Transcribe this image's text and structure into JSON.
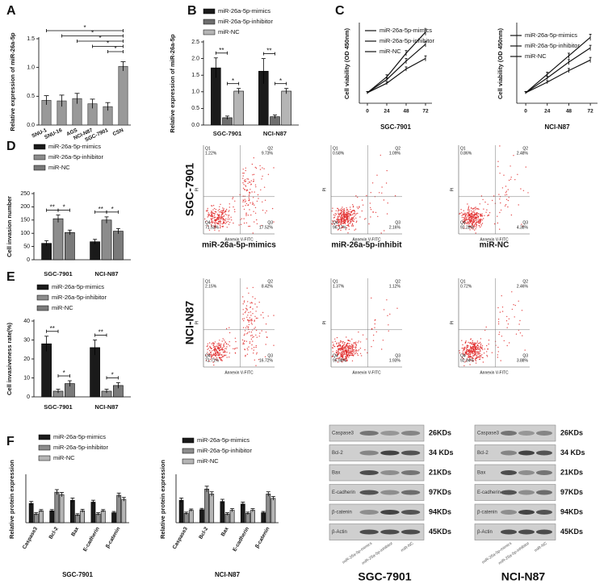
{
  "panel_labels": [
    "A",
    "B",
    "C",
    "D",
    "E",
    "F"
  ],
  "chart_data": [
    {
      "type": "bar",
      "ylabel": "Relative expression of miR-26a-5p",
      "categories": [
        "SNU-1",
        "SNU-16",
        "AGS",
        "NCI-N87",
        "SGC-7901",
        "CSN"
      ],
      "values": [
        0.43,
        0.42,
        0.46,
        0.37,
        0.32,
        1.02
      ],
      "errors": [
        0.08,
        0.1,
        0.09,
        0.08,
        0.07,
        0.08
      ],
      "color": "#999999",
      "ylim": [
        0,
        1.5
      ],
      "yticks": [
        {
          "value": 0,
          "label": "0.0"
        },
        {
          "value": 0.5,
          "label": "0.5"
        },
        {
          "value": 1,
          "label": "1.0"
        },
        {
          "value": 1.5,
          "label": "1.5"
        }
      ],
      "annotations": [
        "*",
        "*",
        "*",
        "*",
        "*"
      ]
    },
    {
      "type": "grouped_bar",
      "ylabel": "Relative expression of miR-26a-5p",
      "categories": [
        "SGC-7901",
        "NCI-N87"
      ],
      "series": [
        {
          "name": "miR-26a-5p-mimics",
          "color": "#1a1a1a",
          "values": [
            1.72,
            1.62
          ],
          "errors": [
            0.3,
            0.38
          ]
        },
        {
          "name": "miR-26a-5p-inhibitor",
          "color": "#6e6e6e",
          "values": [
            0.22,
            0.25
          ],
          "errors": [
            0.05,
            0.05
          ]
        },
        {
          "name": "miR-NC",
          "color": "#b5b5b5",
          "values": [
            1.02,
            1.02
          ],
          "errors": [
            0.08,
            0.08
          ]
        }
      ],
      "ylim": [
        0,
        2.5
      ],
      "yticks": [
        {
          "value": 0,
          "label": "0.0"
        },
        {
          "value": 0.5,
          "label": "0.5"
        },
        {
          "value": 1,
          "label": "1.0"
        },
        {
          "value": 1.5,
          "label": "1.5"
        },
        {
          "value": 2,
          "label": "2.0"
        },
        {
          "value": 2.5,
          "label": "2.5"
        }
      ],
      "annotations": [
        "**",
        "*",
        "**",
        "*"
      ]
    },
    {
      "type": "line",
      "ylabel": "Cell viability (OD 450nm)",
      "xlabel": "SGC-7901",
      "x": [
        0,
        24,
        48,
        72
      ],
      "xlim": [
        -10,
        80
      ],
      "xticks": [
        0,
        24,
        48,
        72
      ],
      "ylim": [
        0,
        1.5
      ],
      "series": [
        {
          "name": "miR-26a-5p-mimics",
          "color": "#111111",
          "values": [
            0.2,
            0.5,
            0.95,
            1.35
          ],
          "errors": [
            0.02,
            0.04,
            0.05,
            0.06
          ]
        },
        {
          "name": "miR-26a-5p-inhibitor",
          "color": "#111111",
          "values": [
            0.2,
            0.38,
            0.65,
            0.85
          ],
          "errors": [
            0.02,
            0.03,
            0.04,
            0.05
          ]
        },
        {
          "name": "miR-NC",
          "color": "#111111",
          "values": [
            0.2,
            0.45,
            0.8,
            1.12
          ],
          "errors": [
            0.02,
            0.03,
            0.05,
            0.05
          ]
        }
      ]
    },
    {
      "type": "line",
      "ylabel": "Cell viability (OD 450nm)",
      "xlabel": "NCI-N87",
      "x": [
        0,
        24,
        48,
        72
      ],
      "xlim": [
        -10,
        80
      ],
      "xticks": [
        0,
        24,
        48,
        72
      ],
      "ylim": [
        0,
        1.5
      ],
      "series": [
        {
          "name": "miR-26a-5p-mimics",
          "color": "#111111",
          "values": [
            0.2,
            0.55,
            0.9,
            1.25
          ],
          "errors": [
            0.02,
            0.04,
            0.05,
            0.06
          ]
        },
        {
          "name": "miR-26a-5p-inhibitor",
          "color": "#111111",
          "values": [
            0.2,
            0.4,
            0.62,
            0.82
          ],
          "errors": [
            0.02,
            0.03,
            0.04,
            0.05
          ]
        },
        {
          "name": "miR-NC",
          "color": "#111111",
          "values": [
            0.2,
            0.48,
            0.78,
            1.05
          ],
          "errors": [
            0.02,
            0.03,
            0.05,
            0.05
          ]
        }
      ]
    },
    {
      "type": "grouped_bar",
      "ylabel": "Cell invasion number",
      "categories": [
        "SGC-7901",
        "NCI-N87"
      ],
      "series": [
        {
          "name": "miR-26a-5p-mimics",
          "color": "#1a1a1a",
          "values": [
            62,
            68
          ],
          "errors": [
            10,
            9
          ]
        },
        {
          "name": "miR-26a-5p-inhibitor",
          "color": "#8c8c8c",
          "values": [
            155,
            150
          ],
          "errors": [
            14,
            12
          ]
        },
        {
          "name": "miR-NC",
          "color": "#7a7a7a",
          "values": [
            103,
            108
          ],
          "errors": [
            9,
            10
          ]
        }
      ],
      "ylim": [
        0,
        250
      ],
      "yticks": [
        0,
        50,
        100,
        150,
        200,
        250
      ],
      "annotations": [
        "**",
        "*",
        "**",
        "*"
      ]
    },
    {
      "type": "grouped_bar",
      "ylabel": "Cell invasiveness rate(%)",
      "categories": [
        "SGC-7901",
        "NCI-N87"
      ],
      "series": [
        {
          "name": "miR-26a-5p-mimics",
          "color": "#1a1a1a",
          "values": [
            28,
            26
          ],
          "errors": [
            4,
            4
          ]
        },
        {
          "name": "miR-26a-5p-inhibitor",
          "color": "#8c8c8c",
          "values": [
            3,
            3
          ],
          "errors": [
            1,
            1
          ]
        },
        {
          "name": "miR-NC",
          "color": "#7a7a7a",
          "values": [
            7,
            6
          ],
          "errors": [
            1.5,
            1.5
          ]
        }
      ],
      "ylim": [
        0,
        40
      ],
      "yticks": [
        0,
        10,
        20,
        30,
        40
      ],
      "annotations": [
        "**",
        "*",
        "**",
        "*"
      ]
    },
    {
      "type": "grouped_bar",
      "ylabel": "Relative protein expression",
      "xlabel": "SGC-7901",
      "categories": [
        "Caspase3",
        "Bcl-2",
        "Bax",
        "E-cadherin",
        "β-catenin"
      ],
      "series": [
        {
          "name": "miR-26a-5p-mimics",
          "color": "#1a1a1a",
          "values": [
            0.62,
            0.38,
            0.72,
            0.66,
            0.32
          ],
          "errors": [
            0.06,
            0.04,
            0.07,
            0.06,
            0.04
          ]
        },
        {
          "name": "miR-26a-5p-inhibitor",
          "color": "#8c8c8c",
          "values": [
            0.28,
            0.98,
            0.25,
            0.28,
            0.88
          ],
          "errors": [
            0.04,
            0.08,
            0.04,
            0.04,
            0.07
          ]
        },
        {
          "name": "miR-NC",
          "color": "#b5b5b5",
          "values": [
            0.38,
            0.9,
            0.38,
            0.38,
            0.75
          ],
          "errors": [
            0.04,
            0.07,
            0.05,
            0.04,
            0.06
          ]
        }
      ],
      "ylim": [
        0,
        1.5
      ]
    },
    {
      "type": "grouped_bar",
      "ylabel": "Relative protein expression",
      "xlabel": "NCI-N87",
      "categories": [
        "Caspase3",
        "Bcl-2",
        "Bax",
        "E-cadherin",
        "β-catenin"
      ],
      "series": [
        {
          "name": "miR-26a-5p-mimics",
          "color": "#1a1a1a",
          "values": [
            0.72,
            0.42,
            0.68,
            0.6,
            0.32
          ],
          "errors": [
            0.07,
            0.04,
            0.07,
            0.06,
            0.04
          ]
        },
        {
          "name": "miR-26a-5p-inhibitor",
          "color": "#8c8c8c",
          "values": [
            0.3,
            1.08,
            0.28,
            0.3,
            0.92
          ],
          "errors": [
            0.04,
            0.09,
            0.04,
            0.04,
            0.07
          ]
        },
        {
          "name": "miR-NC",
          "color": "#b5b5b5",
          "values": [
            0.4,
            0.92,
            0.4,
            0.4,
            0.78
          ],
          "errors": [
            0.04,
            0.07,
            0.05,
            0.05,
            0.06
          ]
        }
      ],
      "ylim": [
        0,
        1.5
      ]
    }
  ],
  "flow_cytometry": {
    "row_labels": [
      "SGC-7901",
      "NCI-N87"
    ],
    "column_labels": [
      "miR-26a-5p-mimics",
      "miR-26a-5p-inhibit",
      "miR-NC"
    ],
    "x_axis_label": "Annexin V-FITC",
    "y_axis_label": "PI",
    "quadrants": [
      "Q1",
      "Q2",
      "Q3",
      "Q4"
    ],
    "plots": [
      [
        [
          "1.22%",
          "9.73%",
          "17.52%",
          "71.53%"
        ],
        [
          "0.58%",
          "1.09%",
          "2.16%",
          "96.17%"
        ],
        [
          "0.86%",
          "2.48%",
          "4.38%",
          "92.28%"
        ]
      ],
      [
        [
          "2.15%",
          "8.42%",
          "16.72%",
          "72.71%"
        ],
        [
          "1.37%",
          "1.12%",
          "1.93%",
          "95.58%"
        ],
        [
          "0.72%",
          "2.46%",
          "3.88%",
          "92.94%"
        ]
      ]
    ]
  },
  "western_blot": {
    "proteins": [
      "Caspase3",
      "Bcl-2",
      "Bax",
      "E-cadherin",
      "β-catenin",
      "β-Actin"
    ],
    "lanes": [
      "miR-26a-5p-mimics",
      "miR-26a-5p-inhibitor",
      "miR-NC"
    ],
    "blots": [
      {
        "title": "SGC-7901",
        "weights": [
          "26KDs",
          "34 KDs",
          "21KDs",
          "97KDs",
          "94KDs",
          "45KDs"
        ]
      },
      {
        "title": "NCI-N87",
        "weights": [
          "26KDs",
          "34 KDs",
          "21KDs",
          "97KDs",
          "94KDs",
          "45KDs"
        ]
      }
    ]
  }
}
